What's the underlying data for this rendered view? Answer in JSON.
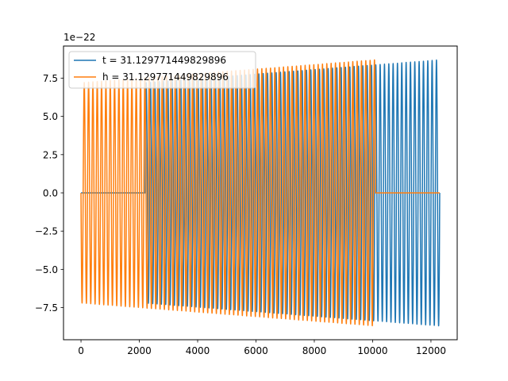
{
  "chart_data": {
    "type": "line",
    "title": "",
    "xlabel": "",
    "ylabel": "",
    "offset_label": "1e−22",
    "xlim": [
      -600,
      12900
    ],
    "ylim": [
      -9.6,
      9.6
    ],
    "xticks": [
      0,
      2000,
      4000,
      6000,
      8000,
      10000,
      12000
    ],
    "xtick_labels": [
      "0",
      "2000",
      "4000",
      "6000",
      "8000",
      "10000",
      "12000"
    ],
    "yticks": [
      -7.5,
      -5.0,
      -2.5,
      0.0,
      2.5,
      5.0,
      7.5
    ],
    "ytick_labels": [
      "−7.5",
      "−5.0",
      "−2.5",
      "0.0",
      "2.5",
      "5.0",
      "7.5"
    ],
    "grid": false,
    "legend_position": "upper-left",
    "series": [
      {
        "name": "t = 31.129771449829896",
        "color": "#1f77b4",
        "signal": {
          "zero_until_x": 2200,
          "end_x": 12300,
          "amplitude_start": 7.2,
          "amplitude_end": 8.7,
          "cycles": 68
        }
      },
      {
        "name": "h = 31.129771449829896",
        "color": "#ff7f0e",
        "signal": {
          "start_x": 0,
          "end_x": 10100,
          "zero_until_x": 12300,
          "amplitude_start": 7.2,
          "amplitude_end": 8.7,
          "cycles": 68
        }
      }
    ]
  }
}
